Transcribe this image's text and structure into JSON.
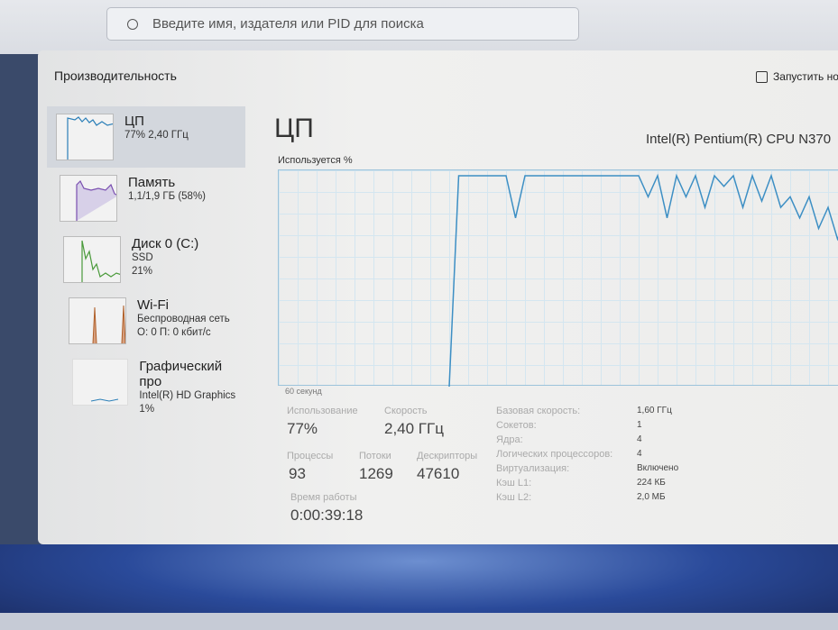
{
  "search": {
    "placeholder": "Введите имя, издателя или PID для поиска"
  },
  "header": {
    "title": "Производительность",
    "run_task": "Запустить нову"
  },
  "sidebar": {
    "items": [
      {
        "name": "ЦП",
        "sub1": "77% 2,40 ГГц",
        "sub2": "",
        "color": "#2b7fb8"
      },
      {
        "name": "Память",
        "sub1": "1,1/1,9 ГБ (58%)",
        "sub2": "",
        "color": "#7a4fb0"
      },
      {
        "name": "Диск 0 (C:)",
        "sub1": "SSD",
        "sub2": "21%",
        "color": "#4a9a3a"
      },
      {
        "name": "Wi-Fi",
        "sub1": "Беспроводная сеть",
        "sub2": "О: 0 П: 0 кбит/с",
        "color": "#b0602a"
      },
      {
        "name": "Графический про",
        "sub1": "Intel(R) HD Graphics",
        "sub2": "1%",
        "color": "#2b7fb8"
      }
    ]
  },
  "main": {
    "heading": "ЦП",
    "model": "Intel(R) Pentium(R) CPU N370",
    "graph_label": "Используется %",
    "time_label": "60 секунд",
    "cpu_history_percent": [
      0,
      0,
      0,
      0,
      0,
      0,
      0,
      0,
      0,
      0,
      0,
      0,
      0,
      0,
      0,
      0,
      0,
      0,
      0,
      100,
      100,
      100,
      100,
      100,
      100,
      80,
      100,
      100,
      100,
      100,
      100,
      100,
      100,
      100,
      100,
      100,
      100,
      100,
      100,
      90,
      100,
      80,
      100,
      90,
      100,
      85,
      100,
      95,
      100,
      85,
      100,
      88,
      100,
      85,
      90,
      80,
      90,
      75,
      85,
      70,
      80
    ],
    "stats": {
      "usage_label": "Использование",
      "usage": "77%",
      "speed_label": "Скорость",
      "speed": "2,40 ГГц",
      "processes_label": "Процессы",
      "processes": "93",
      "threads_label": "Потоки",
      "threads": "1269",
      "handles_label": "Дескрипторы",
      "handles": "47610",
      "uptime_label": "Время работы",
      "uptime": "0:00:39:18"
    },
    "specs": [
      {
        "label": "Базовая скорость:",
        "value": "1,60 ГГц"
      },
      {
        "label": "Сокетов:",
        "value": "1"
      },
      {
        "label": "Ядра:",
        "value": "4"
      },
      {
        "label": "Логических процессоров:",
        "value": "4"
      },
      {
        "label": "Виртуализация:",
        "value": "Включено"
      },
      {
        "label": "Кэш L1:",
        "value": "224 КБ"
      },
      {
        "label": "Кэш L2:",
        "value": "2,0 МБ"
      }
    ]
  }
}
